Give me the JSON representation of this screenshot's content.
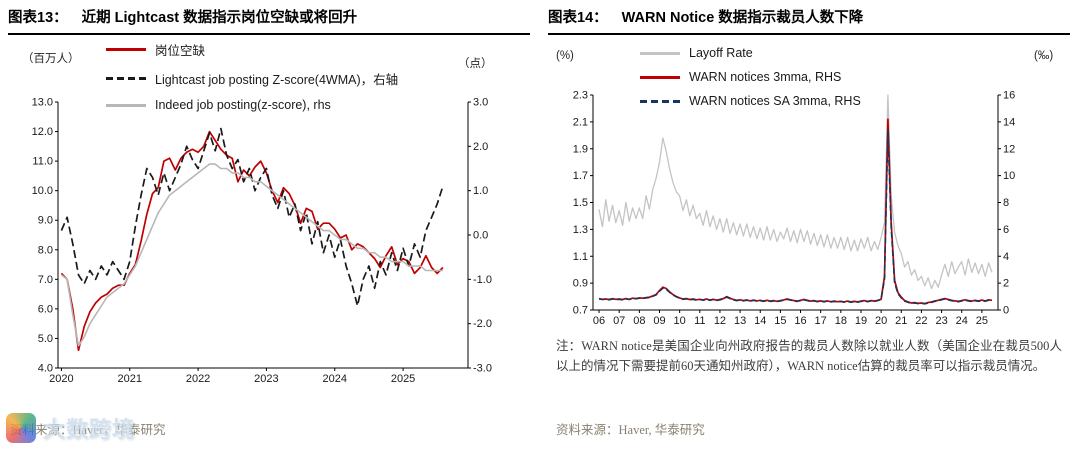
{
  "watermark": {
    "text": "大数跨境"
  },
  "chart_data": [
    {
      "type": "line",
      "figure_label": "图表13：",
      "title": "近期 Lightcast 数据指示岗位空缺或将回升",
      "source": "资料来源：Haver，华泰研究",
      "grid": false,
      "legend_position": "top-left-stacked",
      "left_axis": {
        "unit": "（百万人）",
        "min": 4,
        "max": 13,
        "decimals": 1,
        "ticks": [
          4,
          5,
          6,
          7,
          8,
          9,
          10,
          11,
          12,
          13
        ]
      },
      "right_axis": {
        "unit": "（点）",
        "min": -3,
        "max": 3,
        "decimals": 1,
        "ticks": [
          -3,
          -2,
          -1,
          0,
          1,
          2,
          3
        ]
      },
      "x_axis": {
        "min": 2019.95,
        "max": 2025.95,
        "ticks": [
          2020,
          2021,
          2022,
          2023,
          2024,
          2025
        ],
        "tick_labels": [
          "2020",
          "2021",
          "2022",
          "2023",
          "2024",
          "2025"
        ]
      },
      "series": [
        {
          "name": "岗位空缺",
          "axis": "left",
          "color": "#c00000",
          "width": 1.7,
          "dash": null,
          "x_start": 2020.0,
          "x_step": 0.0833333,
          "y": [
            7.2,
            7.0,
            6.0,
            4.6,
            5.4,
            5.9,
            6.2,
            6.4,
            6.5,
            6.7,
            6.8,
            6.8,
            7.2,
            7.5,
            8.3,
            9.2,
            9.9,
            10.1,
            11.0,
            11.1,
            10.7,
            11.1,
            11.3,
            11.4,
            11.3,
            11.5,
            12.0,
            11.7,
            11.4,
            11.2,
            11.1,
            10.3,
            10.7,
            10.5,
            10.8,
            11.0,
            10.6,
            10.0,
            9.6,
            10.1,
            9.9,
            9.5,
            8.9,
            9.4,
            9.3,
            8.7,
            8.9,
            8.9,
            8.7,
            8.4,
            8.5,
            8.0,
            8.2,
            8.1,
            7.9,
            7.7,
            7.4,
            7.8,
            8.1,
            7.5,
            7.7,
            7.6,
            7.2,
            7.4,
            7.8,
            7.4,
            7.2,
            7.4
          ]
        },
        {
          "name": "Lightcast job posting Z-score(4WMA)，右轴",
          "axis": "right",
          "color": "#1a1a1a",
          "width": 1.7,
          "dash": "8,4",
          "x_start": 2020.0,
          "x_step": 0.0833333,
          "y": [
            0.1,
            0.4,
            -0.2,
            -0.9,
            -1.1,
            -0.8,
            -1.0,
            -0.7,
            -0.9,
            -0.6,
            -0.8,
            -1.0,
            -0.6,
            0.2,
            0.9,
            1.5,
            1.3,
            0.9,
            1.4,
            1.0,
            1.3,
            1.6,
            2.0,
            1.7,
            1.5,
            1.9,
            2.3,
            1.9,
            2.4,
            1.8,
            1.5,
            1.7,
            1.2,
            1.5,
            1.0,
            1.3,
            1.5,
            0.9,
            0.6,
            1.0,
            0.4,
            0.7,
            0.1,
            0.5,
            -0.2,
            0.3,
            -0.4,
            0.0,
            -0.5,
            -0.1,
            -0.7,
            -1.1,
            -1.6,
            -1.0,
            -0.7,
            -1.2,
            -0.6,
            -0.9,
            -0.4,
            -0.8,
            -0.3,
            -0.7,
            -0.2,
            -0.5,
            0.1,
            0.4,
            0.7,
            1.1
          ]
        },
        {
          "name": "Indeed job posting(z-score), rhs",
          "axis": "right",
          "color": "#b7b7b7",
          "width": 1.6,
          "dash": null,
          "x_start": 2020.0,
          "x_step": 0.0833333,
          "y": [
            -0.9,
            -1.0,
            -1.8,
            -2.5,
            -2.3,
            -2.0,
            -1.8,
            -1.6,
            -1.4,
            -1.3,
            -1.2,
            -1.1,
            -0.9,
            -0.7,
            -0.4,
            -0.1,
            0.2,
            0.5,
            0.7,
            0.9,
            1.0,
            1.1,
            1.2,
            1.3,
            1.4,
            1.5,
            1.6,
            1.6,
            1.5,
            1.5,
            1.4,
            1.4,
            1.3,
            1.3,
            1.2,
            1.2,
            1.1,
            1.0,
            0.9,
            0.8,
            0.7,
            0.6,
            0.5,
            0.4,
            0.3,
            0.2,
            0.1,
            0.1,
            0.0,
            -0.1,
            -0.1,
            -0.2,
            -0.3,
            -0.3,
            -0.4,
            -0.4,
            -0.5,
            -0.5,
            -0.6,
            -0.6,
            -0.6,
            -0.7,
            -0.7,
            -0.7,
            -0.8,
            -0.8,
            -0.8,
            -0.8
          ]
        }
      ]
    },
    {
      "type": "line",
      "figure_label": "图表14：",
      "title": "WARN Notice 数据指示裁员人数下降",
      "source": "资料来源：Haver, 华泰研究",
      "note": "注：WARN notice是美国企业向州政府报告的裁员人数除以就业人数（美国企业在裁员500人以上的情况下需要提前60天通知州政府），WARN notice估算的裁员率可以指示裁员情况。",
      "grid": false,
      "legend_position": "top-left-stacked",
      "left_axis": {
        "unit": "(%)",
        "min": 0.7,
        "max": 2.3,
        "decimals": 1,
        "ticks": [
          0.7,
          0.9,
          1.1,
          1.3,
          1.5,
          1.7,
          1.9,
          2.1,
          2.3
        ]
      },
      "right_axis": {
        "unit": "(‰)",
        "min": 0,
        "max": 16,
        "decimals": 0,
        "ticks": [
          0,
          2,
          4,
          6,
          8,
          10,
          12,
          14,
          16
        ]
      },
      "x_axis": {
        "min": 2005.7,
        "max": 2025.8,
        "ticks": [
          2006,
          2007,
          2008,
          2009,
          2010,
          2011,
          2012,
          2013,
          2014,
          2015,
          2016,
          2017,
          2018,
          2019,
          2020,
          2021,
          2022,
          2023,
          2024,
          2025
        ],
        "tick_labels": [
          "06",
          "07",
          "08",
          "09",
          "10",
          "11",
          "12",
          "13",
          "14",
          "15",
          "16",
          "17",
          "18",
          "19",
          "20",
          "21",
          "22",
          "23",
          "24",
          "25"
        ]
      },
      "series": [
        {
          "name": "Layoff Rate",
          "axis": "left",
          "color": "#c4c4c4",
          "width": 1.3,
          "dash": null,
          "x_start": 2006.0,
          "x_step": 0.1666667,
          "y": [
            1.45,
            1.32,
            1.52,
            1.36,
            1.48,
            1.35,
            1.44,
            1.33,
            1.5,
            1.36,
            1.46,
            1.38,
            1.46,
            1.38,
            1.55,
            1.45,
            1.6,
            1.68,
            1.8,
            1.98,
            1.88,
            1.75,
            1.65,
            1.58,
            1.55,
            1.44,
            1.52,
            1.4,
            1.48,
            1.38,
            1.42,
            1.33,
            1.44,
            1.32,
            1.4,
            1.3,
            1.38,
            1.28,
            1.38,
            1.27,
            1.35,
            1.26,
            1.34,
            1.25,
            1.34,
            1.24,
            1.32,
            1.23,
            1.31,
            1.22,
            1.32,
            1.22,
            1.3,
            1.21,
            1.28,
            1.23,
            1.31,
            1.21,
            1.29,
            1.2,
            1.3,
            1.21,
            1.29,
            1.19,
            1.27,
            1.18,
            1.26,
            1.17,
            1.26,
            1.16,
            1.24,
            1.16,
            1.24,
            1.15,
            1.24,
            1.14,
            1.22,
            1.14,
            1.23,
            1.16,
            1.24,
            1.14,
            1.21,
            1.15,
            1.24,
            1.35,
            2.3,
            1.55,
            1.28,
            1.18,
            1.12,
            1.02,
            1.06,
            0.96,
            1.0,
            0.92,
            0.95,
            0.88,
            0.94,
            0.86,
            0.92,
            0.87,
            0.96,
            1.04,
            0.95,
            1.06,
            0.97,
            1.02,
            1.06,
            0.96,
            1.08,
            0.98,
            1.05,
            0.97,
            1.04,
            0.95,
            1.05,
            0.98
          ]
        },
        {
          "name": "WARN notices 3mma, RHS",
          "axis": "right",
          "color": "#c00000",
          "width": 1.7,
          "dash": null,
          "x_start": 2006.0,
          "x_step": 0.1666667,
          "y": [
            0.85,
            0.8,
            0.82,
            0.78,
            0.84,
            0.8,
            0.82,
            0.78,
            0.85,
            0.8,
            0.88,
            0.85,
            0.9,
            0.88,
            0.92,
            0.95,
            1.05,
            1.15,
            1.45,
            1.7,
            1.6,
            1.35,
            1.15,
            1.0,
            0.9,
            0.82,
            0.85,
            0.78,
            0.82,
            0.76,
            0.8,
            0.75,
            0.82,
            0.74,
            0.8,
            0.73,
            0.78,
            0.85,
            1.0,
            0.88,
            0.78,
            0.72,
            0.76,
            0.7,
            0.75,
            0.68,
            0.74,
            0.68,
            0.72,
            0.66,
            0.72,
            0.66,
            0.7,
            0.65,
            0.7,
            0.75,
            0.82,
            0.76,
            0.7,
            0.66,
            0.72,
            0.78,
            0.72,
            0.66,
            0.7,
            0.64,
            0.68,
            0.63,
            0.68,
            0.62,
            0.66,
            0.62,
            0.65,
            0.6,
            0.66,
            0.6,
            0.64,
            0.6,
            0.66,
            0.7,
            0.64,
            0.7,
            0.66,
            0.72,
            0.8,
            2.5,
            14.2,
            6.5,
            2.2,
            1.3,
            0.95,
            0.7,
            0.6,
            0.52,
            0.55,
            0.5,
            0.52,
            0.48,
            0.55,
            0.6,
            0.68,
            0.72,
            0.8,
            0.85,
            0.78,
            0.72,
            0.68,
            0.65,
            0.7,
            0.76,
            0.7,
            0.66,
            0.72,
            0.68,
            0.74,
            0.68,
            0.76,
            0.72
          ]
        },
        {
          "name": "WARN notices SA 3mma, RHS",
          "axis": "right",
          "color": "#17365d",
          "width": 1.6,
          "dash": "6,3",
          "x_start": 2006.0,
          "x_step": 0.1666667,
          "y": [
            0.82,
            0.78,
            0.8,
            0.76,
            0.82,
            0.78,
            0.8,
            0.76,
            0.83,
            0.78,
            0.86,
            0.83,
            0.88,
            0.86,
            0.9,
            0.93,
            1.02,
            1.12,
            1.4,
            1.64,
            1.55,
            1.32,
            1.12,
            0.98,
            0.88,
            0.8,
            0.83,
            0.76,
            0.8,
            0.74,
            0.78,
            0.73,
            0.8,
            0.72,
            0.78,
            0.71,
            0.76,
            0.82,
            0.96,
            0.85,
            0.76,
            0.7,
            0.74,
            0.68,
            0.73,
            0.66,
            0.72,
            0.66,
            0.7,
            0.64,
            0.7,
            0.64,
            0.68,
            0.63,
            0.68,
            0.72,
            0.79,
            0.74,
            0.68,
            0.64,
            0.7,
            0.75,
            0.7,
            0.64,
            0.68,
            0.62,
            0.66,
            0.61,
            0.66,
            0.6,
            0.64,
            0.6,
            0.63,
            0.58,
            0.64,
            0.58,
            0.62,
            0.58,
            0.64,
            0.68,
            0.62,
            0.68,
            0.64,
            0.7,
            0.78,
            2.3,
            13.4,
            6.1,
            2.05,
            1.22,
            0.9,
            0.66,
            0.57,
            0.5,
            0.52,
            0.48,
            0.5,
            0.46,
            0.52,
            0.57,
            0.65,
            0.69,
            0.77,
            0.82,
            0.75,
            0.69,
            0.65,
            0.62,
            0.67,
            0.73,
            0.67,
            0.63,
            0.69,
            0.65,
            0.71,
            0.65,
            0.73,
            0.69
          ]
        }
      ]
    }
  ]
}
